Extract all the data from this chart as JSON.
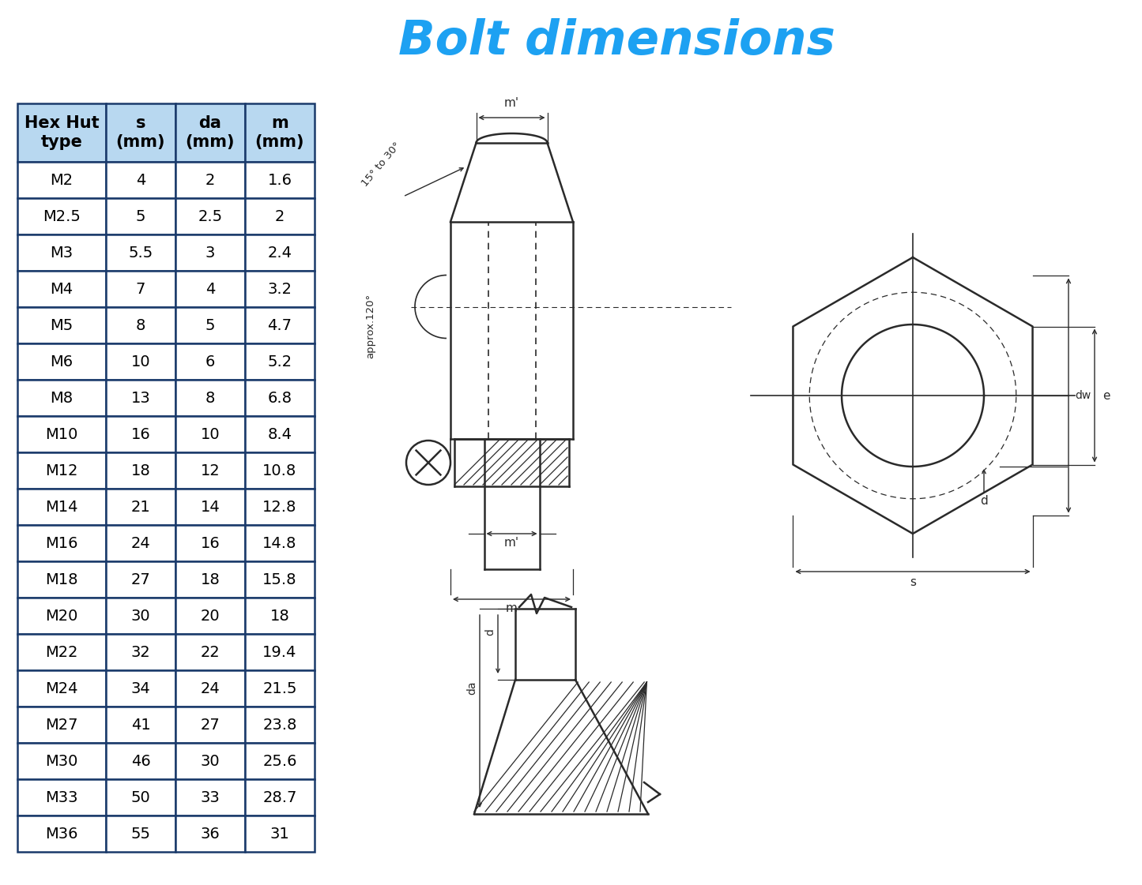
{
  "title": "Bolt dimensions",
  "title_color": "#1da1f2",
  "title_fontsize": 44,
  "background_color": "#ffffff",
  "table_header_bg": "#b8d8f0",
  "table_cell_bg": "#ffffff",
  "table_border_color": "#1a3a6b",
  "table_header_color": "#000000",
  "table_cell_color": "#000000",
  "columns": [
    "Hex Hut\ntype",
    "s\n(mm)",
    "da\n(mm)",
    "m\n(mm)"
  ],
  "rows": [
    [
      "M2",
      "4",
      "2",
      "1.6"
    ],
    [
      "M2.5",
      "5",
      "2.5",
      "2"
    ],
    [
      "M3",
      "5.5",
      "3",
      "2.4"
    ],
    [
      "M4",
      "7",
      "4",
      "3.2"
    ],
    [
      "M5",
      "8",
      "5",
      "4.7"
    ],
    [
      "M6",
      "10",
      "6",
      "5.2"
    ],
    [
      "M8",
      "13",
      "8",
      "6.8"
    ],
    [
      "M10",
      "16",
      "10",
      "8.4"
    ],
    [
      "M12",
      "18",
      "12",
      "10.8"
    ],
    [
      "M14",
      "21",
      "14",
      "12.8"
    ],
    [
      "M16",
      "24",
      "16",
      "14.8"
    ],
    [
      "M18",
      "27",
      "18",
      "15.8"
    ],
    [
      "M20",
      "30",
      "20",
      "18"
    ],
    [
      "M22",
      "32",
      "22",
      "19.4"
    ],
    [
      "M24",
      "34",
      "24",
      "21.5"
    ],
    [
      "M27",
      "41",
      "27",
      "23.8"
    ],
    [
      "M30",
      "46",
      "30",
      "25.6"
    ],
    [
      "M33",
      "50",
      "33",
      "28.7"
    ],
    [
      "M36",
      "55",
      "36",
      "31"
    ]
  ],
  "line_color": "#2a2a2a",
  "dim_line_color": "#2a2a2a"
}
